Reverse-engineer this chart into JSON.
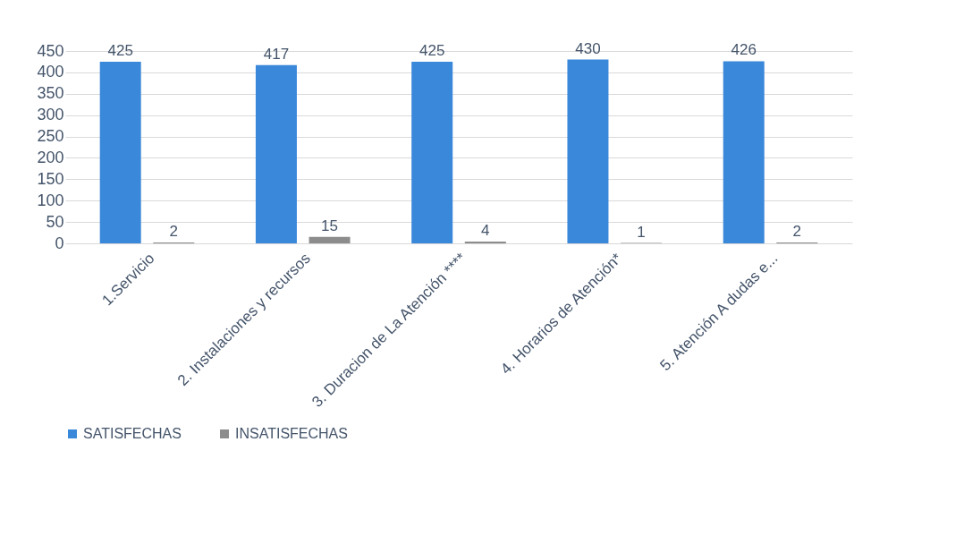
{
  "chart_data": {
    "type": "bar",
    "categories": [
      "1.Servicio",
      "2. Instalaciones y recursos",
      "3. Duracion de La Atención ****",
      "4. Horarios de Atención*",
      "5. Atención A dudas e..."
    ],
    "series": [
      {
        "name": "SATISFECHAS",
        "color": "#3a88d9",
        "values": [
          425,
          417,
          425,
          430,
          426
        ]
      },
      {
        "name": "INSATISFECHAS",
        "color": "#8c8c8c",
        "values": [
          2,
          15,
          4,
          1,
          2
        ]
      }
    ],
    "ylim": [
      0,
      450
    ],
    "yticks": [
      0,
      50,
      100,
      150,
      200,
      250,
      300,
      350,
      400,
      450
    ],
    "grid": "y",
    "legend": "bottom",
    "data_labels": true
  }
}
